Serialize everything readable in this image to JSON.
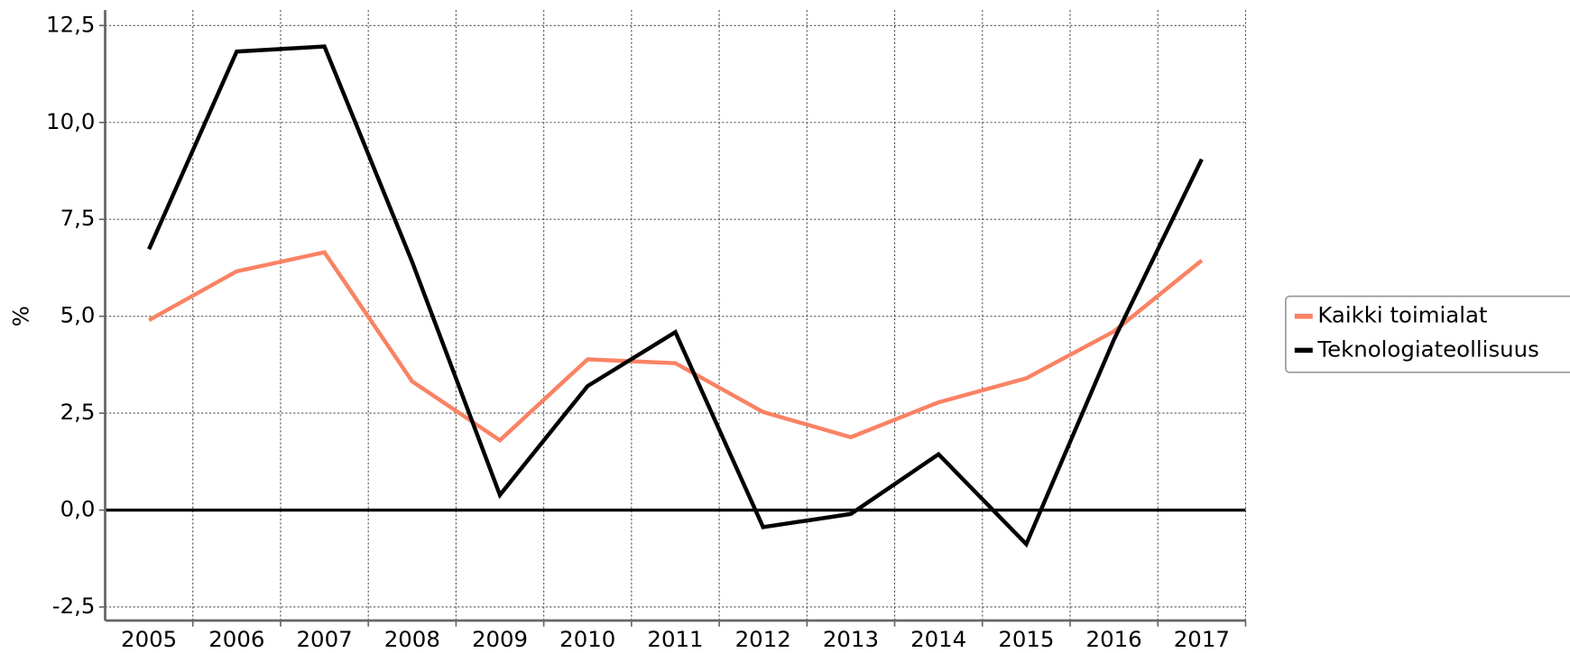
{
  "chart_data": {
    "type": "line",
    "ylabel": "%",
    "categories": [
      "2005",
      "2006",
      "2007",
      "2008",
      "2009",
      "2010",
      "2011",
      "2012",
      "2013",
      "2014",
      "2015",
      "2016",
      "2017"
    ],
    "series": [
      {
        "name": "Kaikki toimialat",
        "color": "#fa8264",
        "values": [
          4.9,
          6.16,
          6.65,
          3.32,
          1.8,
          3.89,
          3.79,
          2.53,
          1.88,
          2.78,
          3.4,
          4.61,
          6.44
        ]
      },
      {
        "name": "Teknologiateollisuus",
        "color": "#000000",
        "values": [
          6.73,
          11.83,
          11.96,
          6.4,
          0.39,
          3.2,
          4.59,
          -0.44,
          -0.1,
          1.44,
          -0.88,
          4.4,
          9.05
        ]
      }
    ],
    "ylim": [
      -2.85,
      12.9
    ],
    "yticks": [
      {
        "value": -2.5,
        "label": "-2,5"
      },
      {
        "value": 0,
        "label": "0,0"
      },
      {
        "value": 2.5,
        "label": "2,5"
      },
      {
        "value": 5,
        "label": "5,0"
      },
      {
        "value": 7.5,
        "label": "7,5"
      },
      {
        "value": 10,
        "label": "10,0"
      },
      {
        "value": 12.5,
        "label": "12,5"
      }
    ],
    "grid": true,
    "legend": "right"
  }
}
